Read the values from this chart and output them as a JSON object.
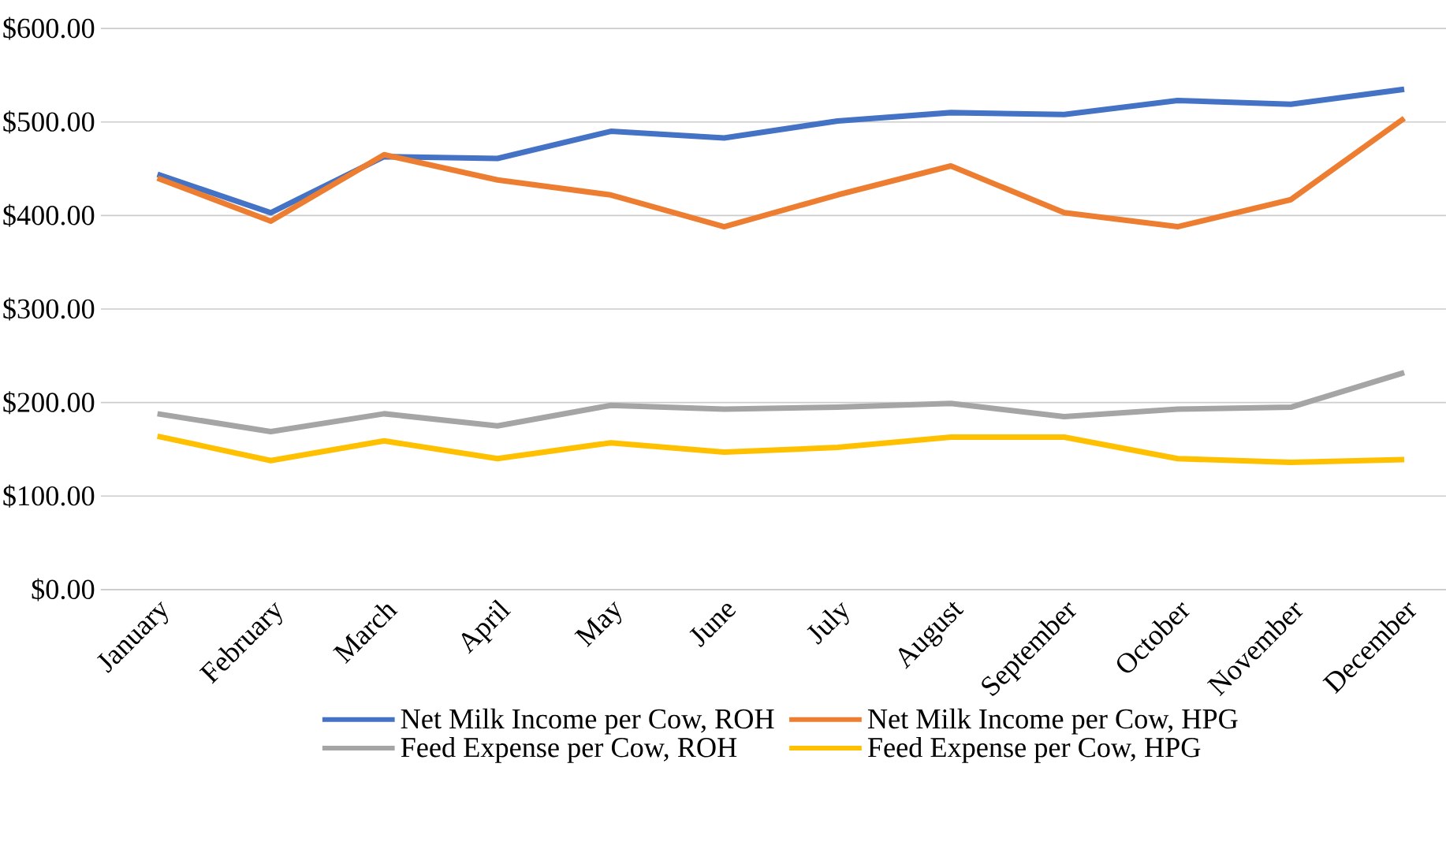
{
  "chart_data": {
    "type": "line",
    "categories": [
      "January",
      "February",
      "March",
      "April",
      "May",
      "June",
      "July",
      "August",
      "September",
      "October",
      "November",
      "December"
    ],
    "series": [
      {
        "name": "Net Milk Income per Cow, ROH",
        "color": "#4472c4",
        "values": [
          444,
          403,
          463,
          461,
          490,
          483,
          501,
          510,
          508,
          523,
          519,
          535
        ]
      },
      {
        "name": "Net Milk Income per Cow, HPG",
        "color": "#ed7d31",
        "values": [
          440,
          394,
          465,
          438,
          422,
          388,
          422,
          453,
          403,
          388,
          417,
          504
        ]
      },
      {
        "name": "Feed Expense per Cow, ROH",
        "color": "#a5a5a5",
        "values": [
          188,
          169,
          188,
          175,
          197,
          193,
          195,
          199,
          185,
          193,
          195,
          232
        ]
      },
      {
        "name": "Feed Expense per Cow, HPG",
        "color": "#ffc000",
        "values": [
          164,
          138,
          159,
          140,
          157,
          147,
          152,
          163,
          163,
          140,
          136,
          139
        ]
      }
    ],
    "ylim": [
      0,
      600
    ],
    "yticks": [
      {
        "value": 0,
        "label": "$0.00"
      },
      {
        "value": 100,
        "label": "$100.00"
      },
      {
        "value": 200,
        "label": "$200.00"
      },
      {
        "value": 300,
        "label": "$300.00"
      },
      {
        "value": 400,
        "label": "$400.00"
      },
      {
        "value": 500,
        "label": "$500.00"
      },
      {
        "value": 600,
        "label": "$600.00"
      }
    ],
    "grid": "y",
    "legend": "bottom",
    "marker": "none",
    "line_style": "solid"
  }
}
